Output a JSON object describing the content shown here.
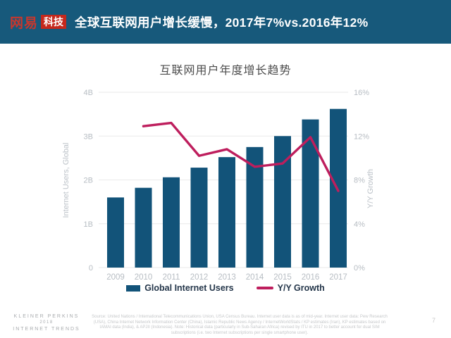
{
  "header": {
    "logo": {
      "brand": "网易",
      "sub": "科技"
    },
    "title": "全球互联网用户增长缓慢，2017年7%vs.2016年12%"
  },
  "chart_data": {
    "type": "bar",
    "title": "互联网用户年度增长趋势",
    "categories": [
      "2009",
      "2010",
      "2011",
      "2012",
      "2013",
      "2014",
      "2015",
      "2016",
      "2017"
    ],
    "series": [
      {
        "name": "Global Internet Users",
        "type": "bar",
        "axis": "left",
        "unit": "B",
        "color": "#125379",
        "values": [
          1.6,
          1.82,
          2.06,
          2.28,
          2.52,
          2.75,
          3.0,
          3.38,
          3.62
        ]
      },
      {
        "name": "Y/Y Growth",
        "type": "line",
        "axis": "right",
        "unit": "%",
        "color": "#BE1E5D",
        "values": [
          null,
          12.9,
          13.2,
          10.2,
          10.8,
          9.2,
          9.5,
          11.9,
          7.0
        ]
      }
    ],
    "left_axis": {
      "label": "Internet Users, Global",
      "range": [
        0,
        4
      ],
      "ticks": [
        "0",
        "1B",
        "2B",
        "3B",
        "4B"
      ]
    },
    "right_axis": {
      "label": "Y/Y Growth",
      "range": [
        0,
        16
      ],
      "ticks": [
        "0%",
        "4%",
        "8%",
        "12%",
        "16%"
      ]
    },
    "grid": true,
    "legend_position": "bottom"
  },
  "footer": {
    "brand_lines": [
      "KLEINER PERKINS",
      "2018",
      "INTERNET TRENDS"
    ],
    "source_text": "Source: United Nations / International Telecommunications Union, USA Census Bureau. Internet user data is as of mid-year. Internet user data: Pew Research (USA), China Internet Network Information Center (China), Islamic Republic News Agency / InternetWorldStats / KP estimates (Iran), KP estimates based on IAMAI data (India), & APJII (Indonesia).  Note: Historical data (particularly in Sub-Saharan Africa) revised by ITU in 2017 to better account for dual SIM subscriptions (i.e. two Internet subscriptions per single smartphone user).",
    "page_number": "7"
  }
}
